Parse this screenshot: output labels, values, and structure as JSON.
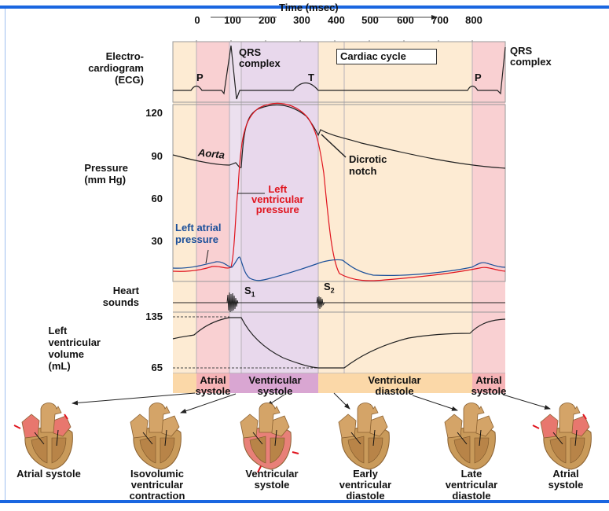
{
  "time_axis": {
    "title": "Time (msec)",
    "ticks": [
      "0",
      "100",
      "200",
      "300",
      "400",
      "500",
      "600",
      "700",
      "800"
    ]
  },
  "rows": {
    "ecg": "Electro-\ncardiogram\n(ECG)",
    "pressure": "Pressure\n(mm Hg)",
    "heart_sounds": "Heart\nsounds",
    "volume": "Left\nventricular\nvolume\n(mL)"
  },
  "pressure_ticks": [
    "120",
    "90",
    "60",
    "30"
  ],
  "volume_ticks": [
    "135",
    "65"
  ],
  "ecg_labels": {
    "p": "P",
    "qrs": "QRS\ncomplex",
    "t": "T",
    "cardiac_cycle": "Cardiac cycle",
    "p2": "P",
    "qrs2": "QRS\ncomplex"
  },
  "curve_labels": {
    "aorta": "Aorta",
    "dicrotic": "Dicrotic\nnotch",
    "lv": "Left\nventricular\npressure",
    "la": "Left atrial\npressure"
  },
  "sounds": {
    "s1": "S",
    "s1_sub": "1",
    "s2": "S",
    "s2_sub": "2"
  },
  "phases": [
    "Atrial\nsystole",
    "Ventricular\nsystole",
    "Ventricular\ndiastole",
    "Atrial\nsystole"
  ],
  "hearts": [
    "Atrial systole",
    "Isovolumic\nventricular\ncontraction",
    "Ventricular\nsystole",
    "Early\nventricular\ndiastole",
    "Late\nventricular\ndiastole",
    "Atrial\nsystole"
  ],
  "colors": {
    "frame": "#1a66e0",
    "beige": "#fdebd3",
    "pink": "#f9d0d2",
    "light_purple": "#ece0ef",
    "purple": "#e8d8ec",
    "lv": "#e0141e",
    "la": "#1a4f9a",
    "phase_purple": "#d9a6d2",
    "phase_orange": "#fbd8a8"
  }
}
